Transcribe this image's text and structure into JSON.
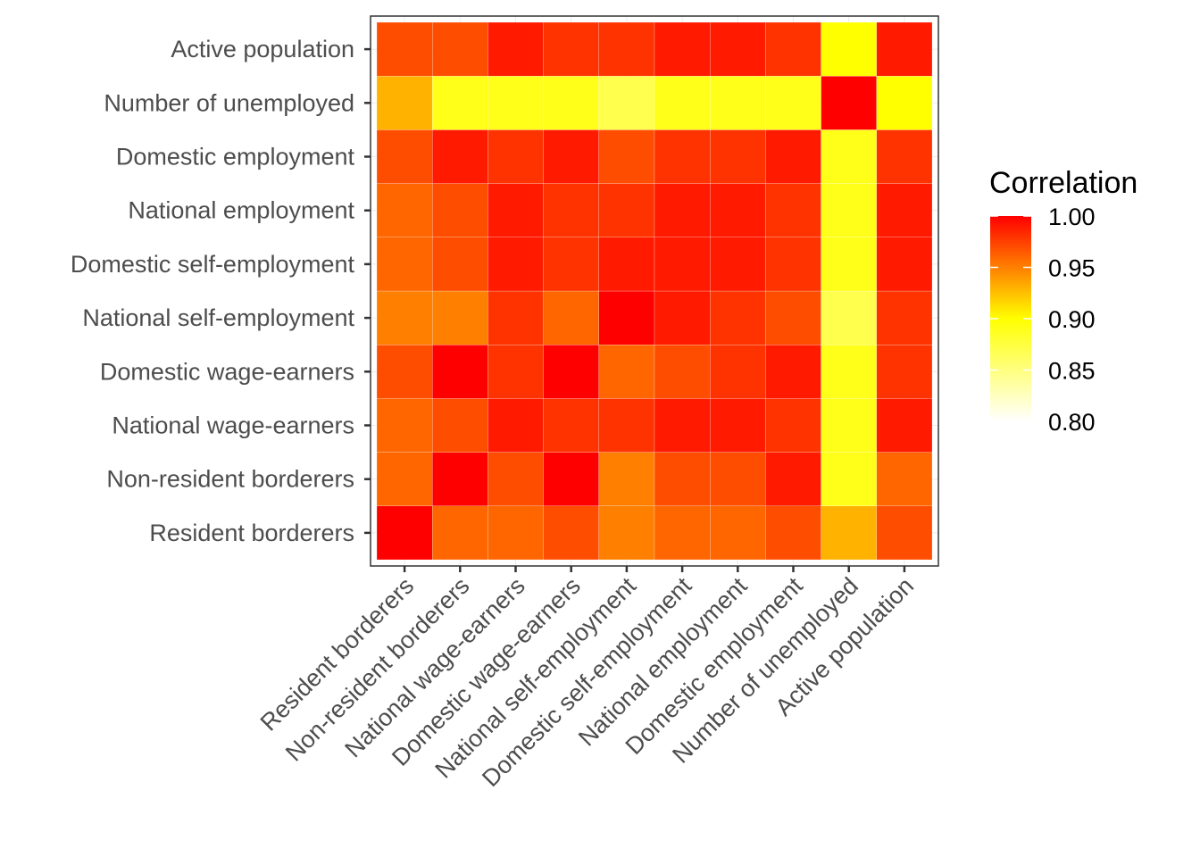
{
  "chart_data": {
    "type": "heatmap",
    "x_categories": [
      "Resident borderers",
      "Non-resident borderers",
      "National wage-earners",
      "Domestic wage-earners",
      "National self-employment",
      "Domestic self-employment",
      "National employment",
      "Domestic employment",
      "Number of unemployed",
      "Active population"
    ],
    "y_categories": [
      "Resident borderers",
      "Non-resident borderers",
      "National wage-earners",
      "Domestic wage-earners",
      "National self-employment",
      "Domestic self-employment",
      "National employment",
      "Domestic employment",
      "Number of unemployed",
      "Active population"
    ],
    "values": [
      [
        1.0,
        0.96,
        0.96,
        0.97,
        0.95,
        0.96,
        0.96,
        0.97,
        0.93,
        0.97
      ],
      [
        0.96,
        1.0,
        0.97,
        1.0,
        0.95,
        0.97,
        0.97,
        0.99,
        0.89,
        0.96
      ],
      [
        0.96,
        0.97,
        0.99,
        0.98,
        0.98,
        0.99,
        0.99,
        0.98,
        0.89,
        0.99
      ],
      [
        0.97,
        1.0,
        0.98,
        1.0,
        0.96,
        0.97,
        0.98,
        0.99,
        0.89,
        0.98
      ],
      [
        0.95,
        0.95,
        0.98,
        0.96,
        1.0,
        0.99,
        0.98,
        0.97,
        0.87,
        0.98
      ],
      [
        0.96,
        0.97,
        0.99,
        0.98,
        0.99,
        0.99,
        0.99,
        0.98,
        0.89,
        0.99
      ],
      [
        0.96,
        0.97,
        0.99,
        0.98,
        0.98,
        0.99,
        0.99,
        0.98,
        0.89,
        0.99
      ],
      [
        0.97,
        0.99,
        0.98,
        0.99,
        0.97,
        0.98,
        0.98,
        0.99,
        0.89,
        0.98
      ],
      [
        0.93,
        0.89,
        0.89,
        0.89,
        0.87,
        0.89,
        0.89,
        0.89,
        1.0,
        0.9
      ],
      [
        0.97,
        0.97,
        0.99,
        0.98,
        0.98,
        0.99,
        0.99,
        0.98,
        0.9,
        0.99
      ]
    ],
    "legend": {
      "title": "Correlation",
      "placement": "right",
      "range": [
        0.8,
        1.0
      ],
      "breaks": [
        1.0,
        0.95,
        0.9,
        0.85,
        0.8
      ],
      "break_labels": [
        "1.00",
        "0.95",
        "0.90",
        "0.85",
        "0.80"
      ],
      "colors": {
        "low": "#FFFFFF",
        "mid": "#FFFF00",
        "high": "#FF0000"
      }
    },
    "title": "",
    "xlabel": "",
    "ylabel": ""
  }
}
